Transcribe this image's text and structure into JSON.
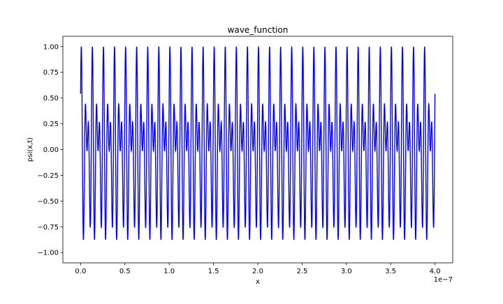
{
  "chart_data": {
    "type": "line",
    "title": "wave_function",
    "xlabel": "x",
    "ylabel": "psi(x,t)",
    "x_offset_text": "1e−7",
    "xlim": [
      -0.2,
      4.2
    ],
    "ylim": [
      -1.1,
      1.1
    ],
    "x_range_data": [
      0.0,
      4.0
    ],
    "x_ticks": [
      0.0,
      0.5,
      1.0,
      1.5,
      2.0,
      2.5,
      3.0,
      3.5,
      4.0
    ],
    "x_tick_labels": [
      "0.0",
      "0.5",
      "1.0",
      "1.5",
      "2.0",
      "2.5",
      "3.0",
      "3.5",
      "4.0"
    ],
    "y_ticks": [
      -1.0,
      -0.75,
      -0.5,
      -0.25,
      0.0,
      0.25,
      0.5,
      0.75,
      1.0
    ],
    "y_tick_labels": [
      "−1.00",
      "−0.75",
      "−0.50",
      "−0.25",
      "0.00",
      "0.25",
      "0.50",
      "0.75",
      "1.00"
    ],
    "grid": false,
    "series": [
      {
        "color": "#0000ff",
        "form": "sin(a*x) + sin(b*x), scaled to peak ±1",
        "a_cycles_over_range": 64,
        "b_cycles_over_range": 96,
        "peak": 1.0
      }
    ]
  }
}
